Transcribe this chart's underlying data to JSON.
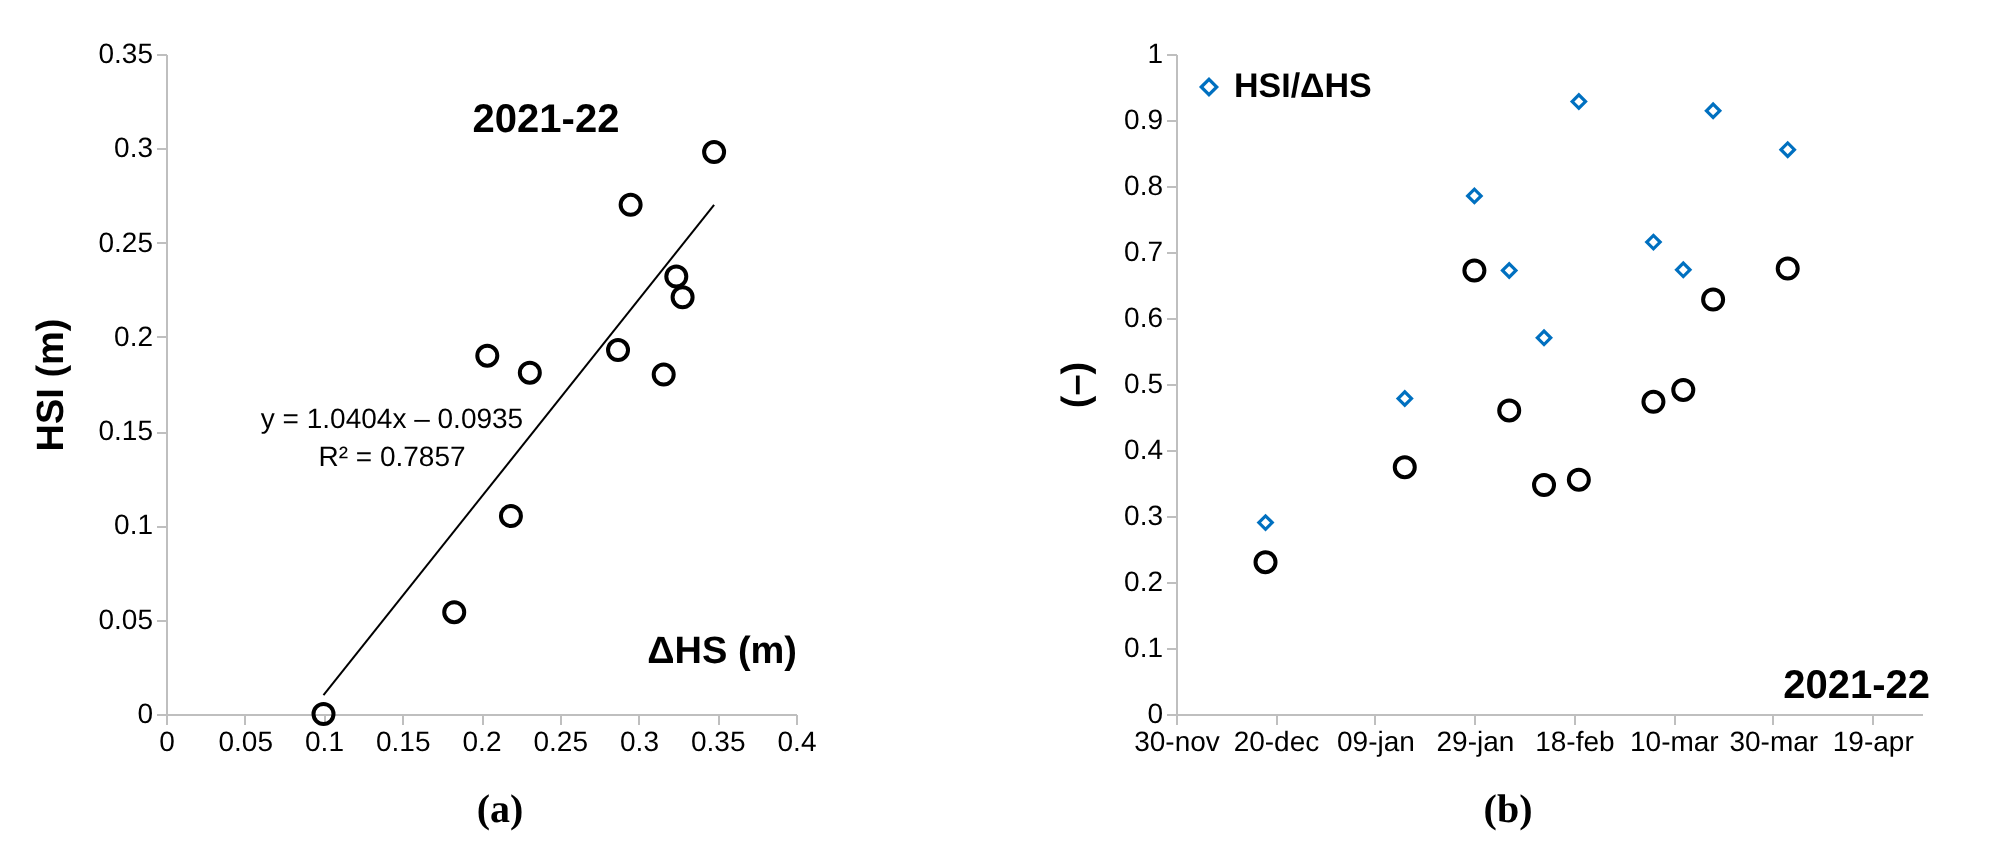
{
  "chart_data": [
    {
      "type": "scatter",
      "title": "2021-22",
      "xlabel": "ΔHS (m)",
      "ylabel": "HSI (m)",
      "xlim": [
        0,
        0.4
      ],
      "xticks": [
        0,
        0.05,
        0.1,
        0.15,
        0.2,
        0.25,
        0.3,
        0.35,
        0.4
      ],
      "ylim": [
        0,
        0.35
      ],
      "yticks": [
        0,
        0.05,
        0.1,
        0.15,
        0.2,
        0.25,
        0.3,
        0.35
      ],
      "grid": false,
      "annotations": [
        "y = 1.0404x – 0.0935",
        "R² = 0.7857",
        "(a)"
      ],
      "series": [
        {
          "marker": "circle",
          "color": "#000000",
          "x": [
            0.1,
            0.183,
            0.204,
            0.219,
            0.231,
            0.287,
            0.295,
            0.316,
            0.324,
            0.328,
            0.348
          ],
          "values": [
            0,
            0.054,
            0.19,
            0.105,
            0.181,
            0.193,
            0.27,
            0.18,
            0.232,
            0.221,
            0.298
          ]
        },
        {
          "type": "line",
          "color": "#000000",
          "x": [
            0.1,
            0.348
          ],
          "values": [
            0.01,
            0.27
          ]
        }
      ]
    },
    {
      "type": "scatter",
      "title": "2021-22",
      "ylabel": "(–)",
      "xlim": [
        "2021-11-30",
        "2022-04-29"
      ],
      "xticks": [
        {
          "value": "2021-11-30",
          "label": "30-nov"
        },
        {
          "value": "2021-12-20",
          "label": "20-dec"
        },
        {
          "value": "2022-01-09",
          "label": "09-jan"
        },
        {
          "value": "2022-01-29",
          "label": "29-jan"
        },
        {
          "value": "2022-02-18",
          "label": "18-feb"
        },
        {
          "value": "2022-03-10",
          "label": "10-mar"
        },
        {
          "value": "2022-03-30",
          "label": "30-mar"
        },
        {
          "value": "2022-04-19",
          "label": "19-apr"
        }
      ],
      "ylim": [
        0,
        1
      ],
      "yticks": [
        0,
        0.1,
        0.2,
        0.3,
        0.4,
        0.5,
        0.6,
        0.7,
        0.8,
        0.9,
        1
      ],
      "grid": false,
      "legend": "top left",
      "annotations": [
        "(b)"
      ],
      "series": [
        {
          "marker": "circle",
          "color": "#000000",
          "x": [
            "2021-12-18",
            "2022-01-15",
            "2022-01-29",
            "2022-02-05",
            "2022-02-12",
            "2022-02-19",
            "2022-03-06",
            "2022-03-12",
            "2022-03-18",
            "2022-04-02"
          ],
          "values": [
            0.23,
            0.374,
            0.672,
            0.46,
            0.347,
            0.355,
            0.473,
            0.491,
            0.628,
            0.675
          ]
        },
        {
          "name": "HSI/ΔHS",
          "marker": "diamond",
          "color": "#0070c0",
          "x": [
            "2021-12-18",
            "2022-01-15",
            "2022-01-29",
            "2022-02-05",
            "2022-02-12",
            "2022-02-19",
            "2022-03-06",
            "2022-03-12",
            "2022-03-18",
            "2022-04-02"
          ],
          "values": [
            0.29,
            0.478,
            0.785,
            0.672,
            0.57,
            0.928,
            0.715,
            0.673,
            0.914,
            0.855
          ]
        }
      ]
    }
  ]
}
